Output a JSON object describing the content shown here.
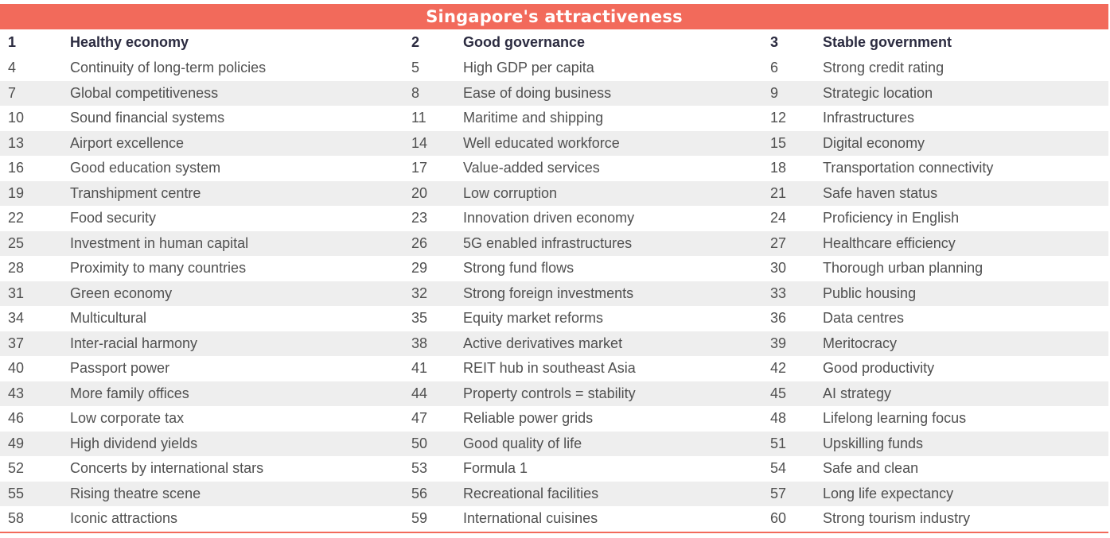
{
  "title": "Singapore's attractiveness",
  "colors": {
    "accent": "#f26a5b",
    "stripe": "#eeeeee",
    "header_text": "#2b2b40",
    "body_text": "#505050"
  },
  "rows": [
    [
      [
        "1",
        "Healthy economy"
      ],
      [
        "2",
        "Good governance"
      ],
      [
        "3",
        "Stable government"
      ]
    ],
    [
      [
        "4",
        "Continuity of long-term policies"
      ],
      [
        "5",
        "High GDP per capita"
      ],
      [
        "6",
        "Strong credit rating"
      ]
    ],
    [
      [
        "7",
        "Global competitiveness"
      ],
      [
        "8",
        "Ease of doing business"
      ],
      [
        "9",
        "Strategic location"
      ]
    ],
    [
      [
        "10",
        "Sound financial systems"
      ],
      [
        "11",
        "Maritime and shipping"
      ],
      [
        "12",
        "Infrastructures"
      ]
    ],
    [
      [
        "13",
        "Airport excellence"
      ],
      [
        "14",
        "Well educated workforce"
      ],
      [
        "15",
        "Digital economy"
      ]
    ],
    [
      [
        "16",
        "Good education system"
      ],
      [
        "17",
        "Value-added services"
      ],
      [
        "18",
        "Transportation connectivity"
      ]
    ],
    [
      [
        "19",
        "Transhipment centre"
      ],
      [
        "20",
        "Low corruption"
      ],
      [
        "21",
        "Safe haven status"
      ]
    ],
    [
      [
        "22",
        "Food security"
      ],
      [
        "23",
        "Innovation driven economy"
      ],
      [
        "24",
        "Proficiency in English"
      ]
    ],
    [
      [
        "25",
        "Investment in human capital"
      ],
      [
        "26",
        "5G enabled infrastructures"
      ],
      [
        "27",
        "Healthcare efficiency"
      ]
    ],
    [
      [
        "28",
        "Proximity to many countries"
      ],
      [
        "29",
        "Strong fund flows"
      ],
      [
        "30",
        "Thorough urban planning"
      ]
    ],
    [
      [
        "31",
        "Green economy"
      ],
      [
        "32",
        "Strong foreign investments"
      ],
      [
        "33",
        "Public housing"
      ]
    ],
    [
      [
        "34",
        "Multicultural"
      ],
      [
        "35",
        "Equity market reforms"
      ],
      [
        "36",
        "Data centres"
      ]
    ],
    [
      [
        "37",
        "Inter-racial harmony"
      ],
      [
        "38",
        "Active derivatives market"
      ],
      [
        "39",
        "Meritocracy"
      ]
    ],
    [
      [
        "40",
        "Passport power"
      ],
      [
        "41",
        "REIT hub in southeast Asia"
      ],
      [
        "42",
        "Good productivity"
      ]
    ],
    [
      [
        "43",
        "More family offices"
      ],
      [
        "44",
        "Property controls = stability"
      ],
      [
        "45",
        "AI strategy"
      ]
    ],
    [
      [
        "46",
        "Low corporate tax"
      ],
      [
        "47",
        "Reliable power grids"
      ],
      [
        "48",
        "Lifelong learning focus"
      ]
    ],
    [
      [
        "49",
        "High dividend yields"
      ],
      [
        "50",
        "Good quality of life"
      ],
      [
        "51",
        "Upskilling funds"
      ]
    ],
    [
      [
        "52",
        "Concerts by international stars"
      ],
      [
        "53",
        "Formula 1"
      ],
      [
        "54",
        "Safe and clean"
      ]
    ],
    [
      [
        "55",
        "Rising theatre scene"
      ],
      [
        "56",
        "Recreational facilities"
      ],
      [
        "57",
        "Long life expectancy"
      ]
    ],
    [
      [
        "58",
        "Iconic attractions"
      ],
      [
        "59",
        "International cuisines"
      ],
      [
        "60",
        "Strong tourism industry"
      ]
    ]
  ]
}
